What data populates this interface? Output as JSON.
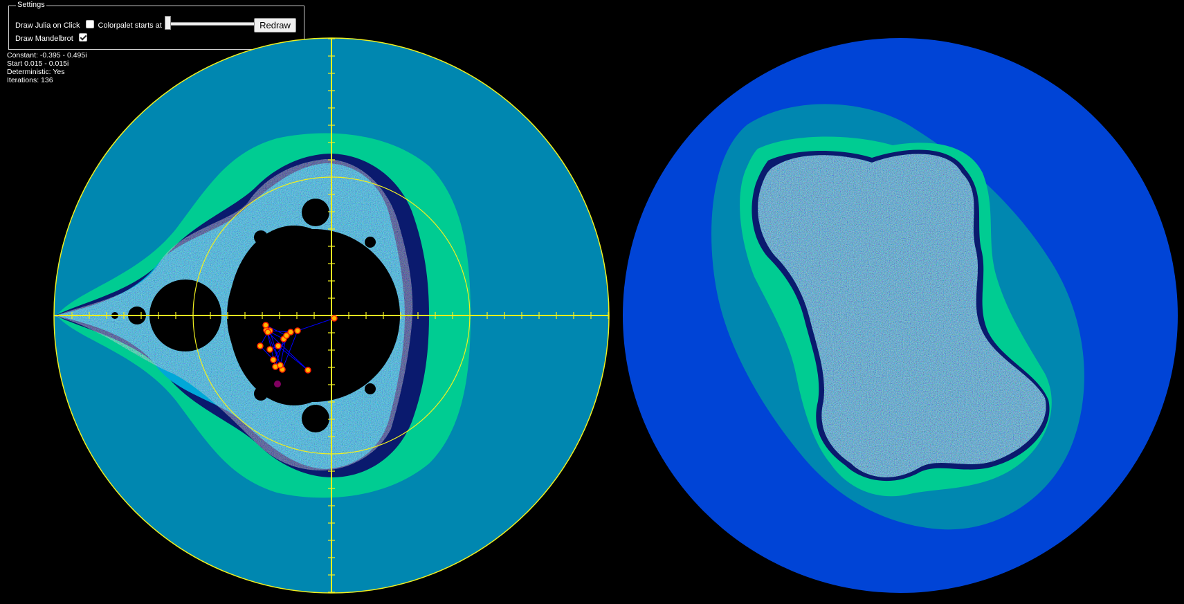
{
  "settings": {
    "legend": "Settings",
    "draw_julia_label": "Draw Julia on Click",
    "draw_julia_checked": false,
    "colorpalet_label": "Colorpalet starts at",
    "colorpalet_value": 0,
    "redraw_label": "Redraw",
    "draw_mandelbrot_label": "Draw Mandelbrot",
    "draw_mandelbrot_checked": true
  },
  "info": {
    "constant": "Constant: -0.395 - 0.495i",
    "start": "Start 0.015 - 0.015i",
    "deterministic": "Deterministic: Yes",
    "iterations": "Iterations: 136"
  },
  "colors": {
    "background": "#000000",
    "mandel_outer": "#0087b0",
    "mandel_band_green": "#00cc92",
    "band_navy": "#0a1a6e",
    "band_cyan": "#00c8e8",
    "band_green": "#00a060",
    "julia_outer": "#0044d6",
    "axis": "#f0f020",
    "orbit_point": "#ffb400",
    "orbit_line": "#0000ff",
    "constant_point": "#800060"
  }
}
